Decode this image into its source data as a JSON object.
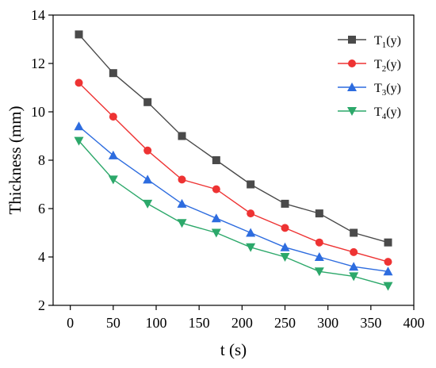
{
  "chart_data": {
    "type": "line",
    "xlabel": "t (s)",
    "ylabel": "Thickness (mm)",
    "xlim": [
      -20,
      400
    ],
    "ylim": [
      2,
      14
    ],
    "xticks": [
      0,
      50,
      100,
      150,
      200,
      250,
      300,
      350,
      400
    ],
    "yticks": [
      2,
      4,
      6,
      8,
      10,
      12,
      14
    ],
    "x": [
      10,
      50,
      90,
      130,
      170,
      210,
      250,
      290,
      330,
      370
    ],
    "legend_position": "top-right",
    "grid": false,
    "series": [
      {
        "name": "T",
        "subscript": "1",
        "suffix": "(y)",
        "marker": "square",
        "color": "#4a4a4a",
        "values": [
          13.2,
          11.6,
          10.4,
          9.0,
          8.0,
          7.0,
          6.2,
          5.8,
          5.0,
          4.6
        ]
      },
      {
        "name": "T",
        "subscript": "2",
        "suffix": "(y)",
        "marker": "circle",
        "color": "#ee3333",
        "values": [
          11.2,
          9.8,
          8.4,
          7.2,
          6.8,
          5.8,
          5.2,
          4.6,
          4.2,
          3.8
        ]
      },
      {
        "name": "T",
        "subscript": "3",
        "suffix": "(y)",
        "marker": "triangle-up",
        "color": "#2d6cdf",
        "values": [
          9.4,
          8.2,
          7.2,
          6.2,
          5.6,
          5.0,
          4.4,
          4.0,
          3.6,
          3.4
        ]
      },
      {
        "name": "T",
        "subscript": "4",
        "suffix": "(y)",
        "marker": "triangle-down",
        "color": "#2ca86a",
        "values": [
          8.8,
          7.2,
          6.2,
          5.4,
          5.0,
          4.4,
          4.0,
          3.4,
          3.2,
          2.8
        ]
      }
    ]
  }
}
